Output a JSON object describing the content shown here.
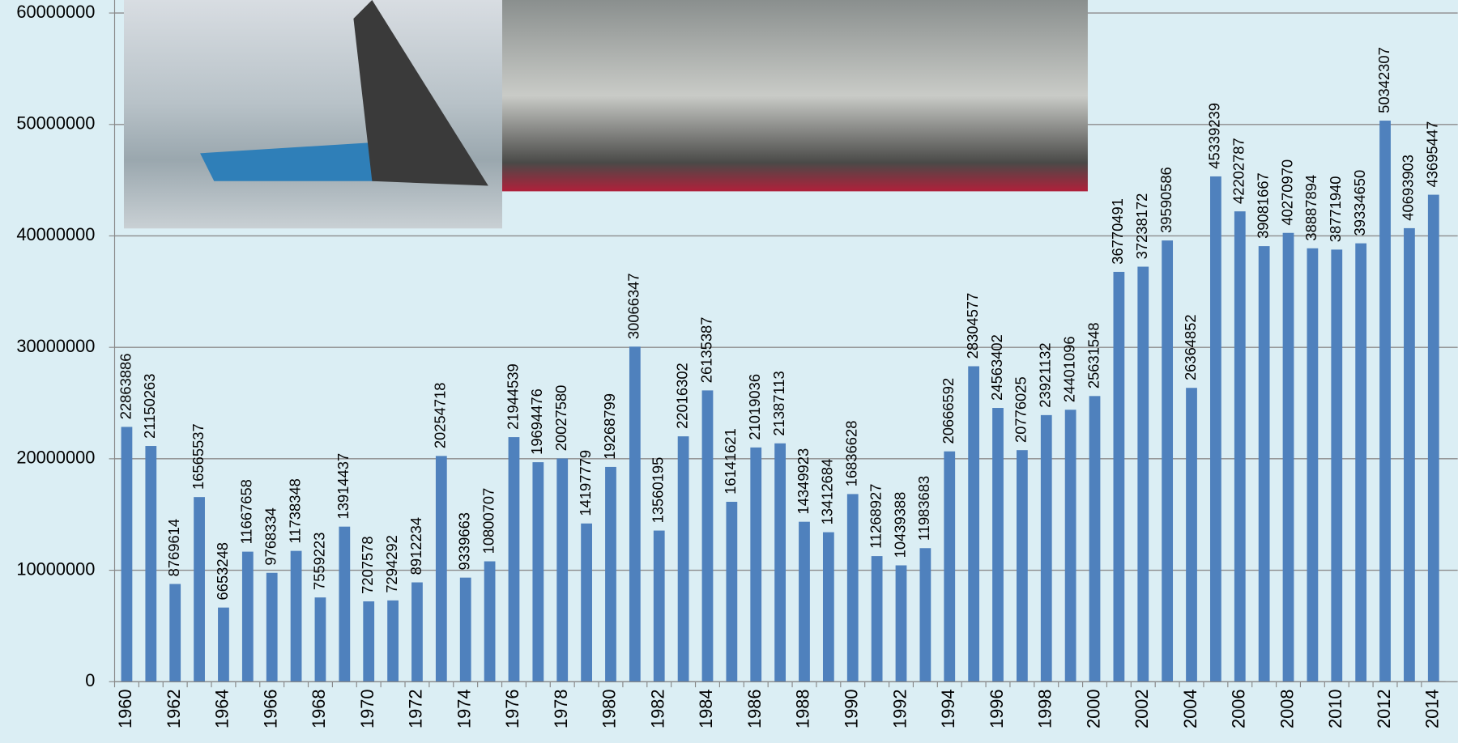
{
  "chart_data": {
    "type": "bar",
    "categories": [
      "1960",
      null,
      "1962",
      null,
      "1964",
      null,
      "1966",
      null,
      "1968",
      null,
      "1970",
      null,
      "1972",
      null,
      "1974",
      null,
      "1976",
      null,
      "1978",
      null,
      "1980",
      null,
      "1982",
      null,
      "1984",
      null,
      "1986",
      null,
      "1988",
      null,
      "1990",
      null,
      "1992",
      null,
      "1994",
      null,
      "1996",
      null,
      "1998",
      null,
      "2000",
      null,
      "2002",
      null,
      "2004",
      null,
      "2006",
      null,
      "2008",
      null,
      "2010",
      null,
      "2012",
      null,
      "2014"
    ],
    "values": [
      22863886,
      21150263,
      8769614,
      16565537,
      6653248,
      11667658,
      9768334,
      11738348,
      7559223,
      13914437,
      7207578,
      7294292,
      8912234,
      20254718,
      9339663,
      10800707,
      21944539,
      19694476,
      20027580,
      14197779,
      19268799,
      30066347,
      13560195,
      22016302,
      26135387,
      16141621,
      21019036,
      21387113,
      14349923,
      13412684,
      16836628,
      11268927,
      10439388,
      11983683,
      20666592,
      28304577,
      24563402,
      20776025,
      23921132,
      24401096,
      25631548,
      36770491,
      37238172,
      39590586,
      26364852,
      45339239,
      42202787,
      39081667,
      40270970,
      38887894,
      38771940,
      39334650,
      50342307,
      40693903,
      43695447
    ],
    "color": "#4f81bd",
    "ylim": [
      0,
      60000000
    ],
    "yticks": [
      0,
      10000000,
      20000000,
      30000000,
      40000000,
      50000000,
      60000000
    ],
    "grid": true
  }
}
